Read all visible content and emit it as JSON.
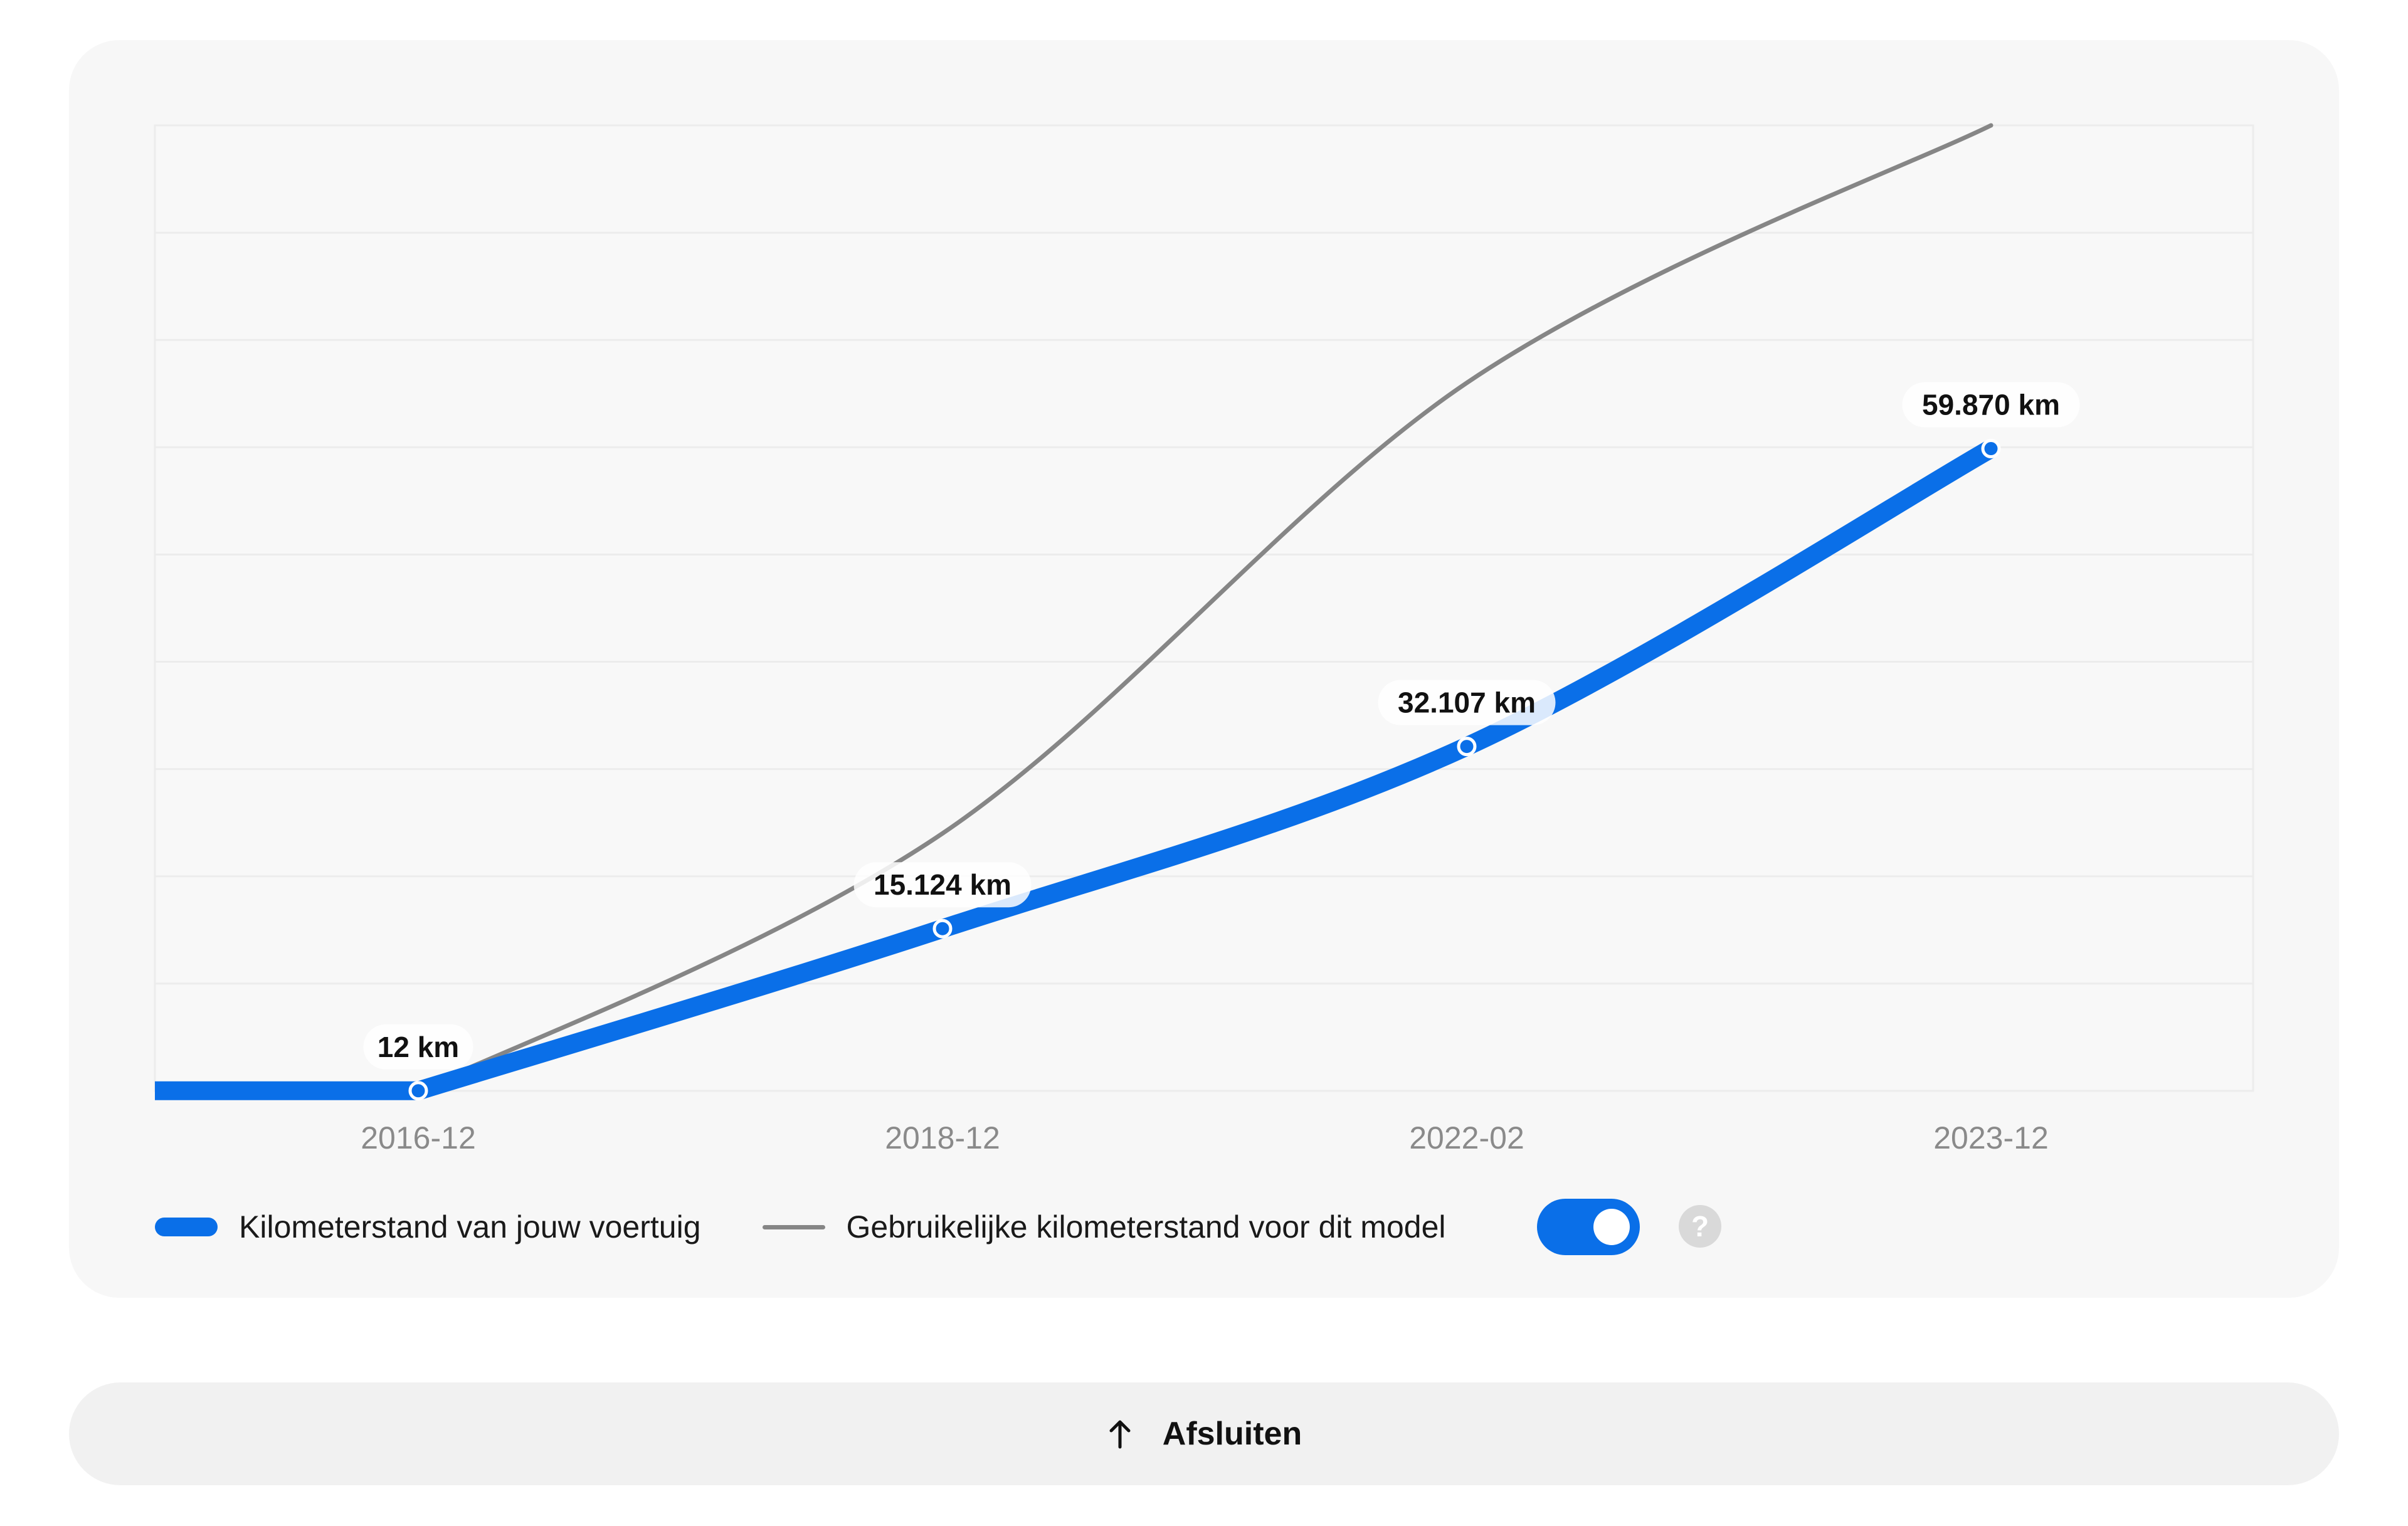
{
  "chart_data": {
    "type": "line",
    "title": "",
    "xlabel": "",
    "ylabel": "",
    "x": [
      "2016-12",
      "2018-12",
      "2022-02",
      "2023-12"
    ],
    "ylim": [
      0,
      90000
    ],
    "grid": true,
    "series": [
      {
        "name": "Kilometerstand van jouw voertuig",
        "values": [
          12,
          15124,
          32107,
          59870
        ],
        "data_labels": [
          "12 km",
          "15.124 km",
          "32.107 km",
          "59.870 km"
        ],
        "color": "#0a6fe8"
      },
      {
        "name": "Gebruikelijke kilometerstand voor dit model",
        "values": [
          0,
          24000,
          66000,
          90000
        ],
        "color": "#868686"
      }
    ]
  },
  "legend": {
    "own_label": "Kilometerstand van jouw voertuig",
    "typical_label": "Gebruikelijke kilometerstand voor dit model"
  },
  "toggle": {
    "on": true
  },
  "help": {
    "symbol": "?"
  },
  "close_button": {
    "label": "Afsluiten",
    "icon": "arrow-up-icon"
  },
  "colors": {
    "accent": "#0a6fe8",
    "typical_line": "#868686",
    "card_background": "#f7f7f7",
    "button_background": "#f1f1f1"
  }
}
